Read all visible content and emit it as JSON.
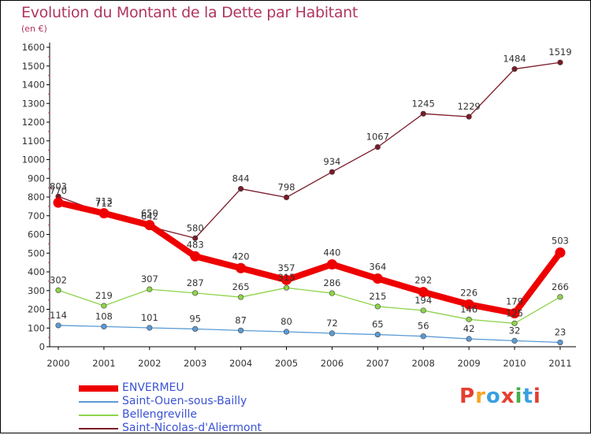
{
  "title": "Evolution du Montant de la Dette par Habitant",
  "unit": "(en €)",
  "logo": {
    "text": "Proxiti",
    "colors": [
      "#e53e30",
      "#f5a623",
      "#3ba0e0",
      "#e53e30",
      "#43b04a",
      "#3ba0e0",
      "#e53e30"
    ]
  },
  "chart_data": {
    "type": "line",
    "x": [
      "2000",
      "2001",
      "2002",
      "2003",
      "2004",
      "2005",
      "2006",
      "2007",
      "2008",
      "2009",
      "2010",
      "2011"
    ],
    "ylim": [
      0,
      1600
    ],
    "yticks": [
      0,
      100,
      200,
      300,
      400,
      500,
      600,
      700,
      800,
      900,
      1000,
      1100,
      1200,
      1300,
      1400,
      1500,
      1600
    ],
    "grid": false,
    "legend_position": "bottom-left",
    "series": [
      {
        "name": "Saint-Nicolas-d'Aliermont",
        "color": "#7a1a28",
        "values": [
          803,
          712,
          642,
          580,
          844,
          798,
          934,
          1067,
          1245,
          1229,
          1484,
          1519
        ]
      },
      {
        "name": "Bellengreville",
        "color": "#8ed34a",
        "values": [
          302,
          219,
          307,
          287,
          265,
          315,
          286,
          215,
          194,
          146,
          125,
          266
        ]
      },
      {
        "name": "Saint-Ouen-sous-Bailly",
        "color": "#5b9bd5",
        "values": [
          114,
          108,
          101,
          95,
          87,
          80,
          72,
          65,
          56,
          42,
          32,
          23
        ]
      },
      {
        "name": "ENVERMEU",
        "color": "#ee0000",
        "values": [
          770,
          713,
          650,
          483,
          420,
          357,
          440,
          364,
          292,
          226,
          179,
          503
        ]
      }
    ],
    "legend_order": [
      "ENVERMEU",
      "Saint-Ouen-sous-Bailly",
      "Bellengreville",
      "Saint-Nicolas-d'Aliermont"
    ]
  }
}
